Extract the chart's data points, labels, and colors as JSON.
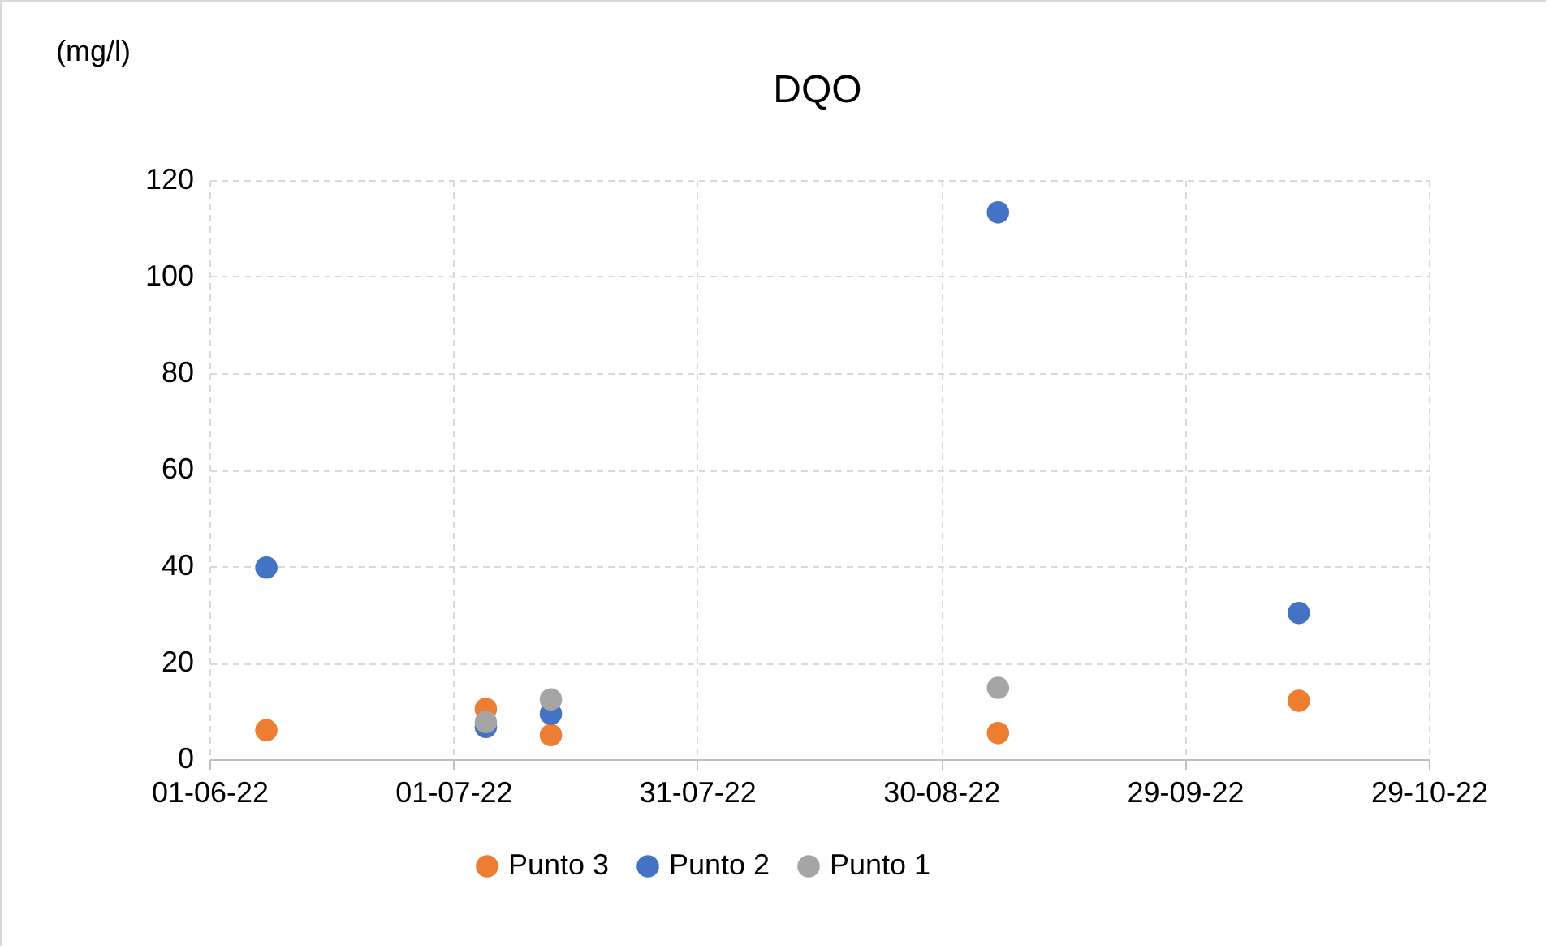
{
  "chart_data": {
    "type": "scatter",
    "title": "DQO",
    "ylabel": "(mg/l)",
    "x": [
      "2022-06-08",
      "2022-07-05",
      "2022-07-13",
      "2022-09-06",
      "2022-10-13"
    ],
    "series": [
      {
        "name": "Punto 3",
        "color": "#ed7d31",
        "values": [
          6,
          10.4,
          5,
          5.4,
          12.1
        ]
      },
      {
        "name": "Punto 2",
        "color": "#4472c4",
        "values": [
          39.7,
          6.7,
          9.4,
          113.3,
          30.3
        ]
      },
      {
        "name": "Punto 1",
        "color": "#a5a5a5",
        "values": [
          null,
          7.7,
          12.4,
          14.8,
          null
        ]
      }
    ],
    "xlim": [
      "2022-06-01",
      "2022-10-29"
    ],
    "xticks": [
      {
        "value": "2022-06-01",
        "label": "01-06-22"
      },
      {
        "value": "2022-07-01",
        "label": "01-07-22"
      },
      {
        "value": "2022-07-31",
        "label": "31-07-22"
      },
      {
        "value": "2022-08-30",
        "label": "30-08-22"
      },
      {
        "value": "2022-09-29",
        "label": "29-09-22"
      },
      {
        "value": "2022-10-29",
        "label": "29-10-22"
      }
    ],
    "ylim": [
      0,
      120
    ],
    "yticks": [
      0,
      20,
      40,
      60,
      80,
      100,
      120
    ],
    "grid": true,
    "legend": "bottom",
    "marker": "circle"
  }
}
